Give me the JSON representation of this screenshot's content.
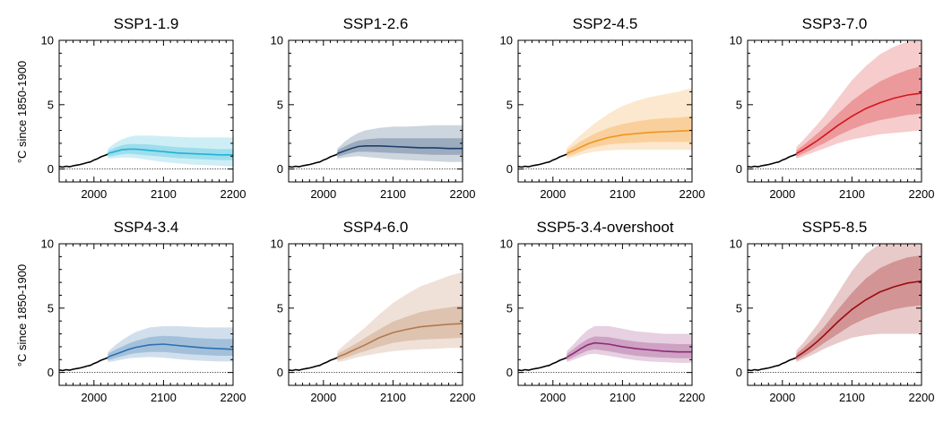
{
  "figure": {
    "ylabel": "°C since 1850-1900"
  },
  "chart_data": [
    {
      "type": "area",
      "title": "SSP1-1.9",
      "color": "#1fb3d5",
      "xlim": [
        1950,
        2200
      ],
      "ylim": [
        -1,
        10
      ],
      "xticks": [
        2000,
        2100,
        2200
      ],
      "yticks": [
        0,
        5,
        10
      ],
      "series": [
        {
          "x": [
            2020,
            2030,
            2040,
            2050,
            2060,
            2080,
            2100,
            2120,
            2140,
            2160,
            2180,
            2200
          ],
          "median": [
            1.2,
            1.35,
            1.5,
            1.55,
            1.55,
            1.45,
            1.35,
            1.25,
            1.2,
            1.15,
            1.1,
            1.1
          ],
          "p17": [
            0.95,
            1.05,
            1.15,
            1.2,
            1.15,
            1.05,
            0.95,
            0.85,
            0.8,
            0.75,
            0.7,
            0.7
          ],
          "p83": [
            1.4,
            1.65,
            1.85,
            1.95,
            1.95,
            1.9,
            1.8,
            1.7,
            1.65,
            1.6,
            1.55,
            1.55
          ],
          "p5": [
            0.8,
            0.85,
            0.9,
            0.9,
            0.85,
            0.7,
            0.55,
            0.45,
            0.35,
            0.3,
            0.25,
            0.2
          ],
          "p95": [
            1.6,
            2.0,
            2.3,
            2.5,
            2.6,
            2.6,
            2.55,
            2.5,
            2.45,
            2.45,
            2.45,
            2.45
          ]
        }
      ]
    },
    {
      "type": "area",
      "title": "SSP1-2.6",
      "color": "#1b3f6b",
      "xlim": [
        1950,
        2200
      ],
      "ylim": [
        -1,
        10
      ],
      "xticks": [
        2000,
        2100,
        2200
      ],
      "yticks": [
        0,
        5,
        10
      ],
      "series": [
        {
          "x": [
            2020,
            2030,
            2040,
            2050,
            2060,
            2080,
            2100,
            2120,
            2140,
            2160,
            2180,
            2200
          ],
          "median": [
            1.2,
            1.4,
            1.6,
            1.75,
            1.8,
            1.8,
            1.75,
            1.7,
            1.65,
            1.65,
            1.6,
            1.6
          ],
          "p17": [
            0.95,
            1.1,
            1.25,
            1.35,
            1.35,
            1.3,
            1.25,
            1.2,
            1.15,
            1.1,
            1.1,
            1.1
          ],
          "p83": [
            1.45,
            1.75,
            2.0,
            2.2,
            2.3,
            2.4,
            2.4,
            2.4,
            2.4,
            2.4,
            2.4,
            2.4
          ],
          "p5": [
            0.8,
            0.9,
            0.95,
            1.0,
            0.95,
            0.85,
            0.75,
            0.7,
            0.65,
            0.6,
            0.55,
            0.55
          ],
          "p95": [
            1.6,
            2.1,
            2.5,
            2.8,
            3.0,
            3.2,
            3.3,
            3.3,
            3.35,
            3.4,
            3.4,
            3.4
          ]
        }
      ]
    },
    {
      "type": "area",
      "title": "SSP2-4.5",
      "color": "#f0941e",
      "xlim": [
        1950,
        2200
      ],
      "ylim": [
        -1,
        10
      ],
      "xticks": [
        2000,
        2100,
        2200
      ],
      "yticks": [
        0,
        5,
        10
      ],
      "series": [
        {
          "x": [
            2020,
            2030,
            2040,
            2050,
            2060,
            2080,
            2100,
            2120,
            2140,
            2160,
            2180,
            2200
          ],
          "median": [
            1.2,
            1.45,
            1.7,
            1.95,
            2.15,
            2.45,
            2.65,
            2.75,
            2.85,
            2.9,
            2.95,
            3.0
          ],
          "p17": [
            0.95,
            1.15,
            1.35,
            1.55,
            1.7,
            1.9,
            2.0,
            2.05,
            2.1,
            2.1,
            2.1,
            2.1
          ],
          "p83": [
            1.45,
            1.8,
            2.15,
            2.45,
            2.75,
            3.2,
            3.5,
            3.7,
            3.85,
            3.95,
            4.0,
            4.1
          ],
          "p5": [
            0.8,
            0.95,
            1.1,
            1.25,
            1.35,
            1.45,
            1.5,
            1.5,
            1.5,
            1.5,
            1.5,
            1.5
          ],
          "p95": [
            1.65,
            2.15,
            2.65,
            3.1,
            3.55,
            4.3,
            4.9,
            5.3,
            5.6,
            5.8,
            6.0,
            6.3
          ]
        }
      ]
    },
    {
      "type": "area",
      "title": "SSP3-7.0",
      "color": "#d4161b",
      "xlim": [
        1950,
        2200
      ],
      "ylim": [
        -1,
        10
      ],
      "xticks": [
        2000,
        2100,
        2200
      ],
      "yticks": [
        0,
        5,
        10
      ],
      "series": [
        {
          "x": [
            2020,
            2030,
            2040,
            2050,
            2060,
            2080,
            2100,
            2120,
            2140,
            2160,
            2180,
            2200
          ],
          "median": [
            1.2,
            1.5,
            1.85,
            2.2,
            2.6,
            3.4,
            4.1,
            4.7,
            5.15,
            5.5,
            5.75,
            5.9
          ],
          "p17": [
            0.95,
            1.2,
            1.45,
            1.75,
            2.0,
            2.6,
            3.1,
            3.5,
            3.8,
            4.0,
            4.2,
            4.3
          ],
          "p83": [
            1.45,
            1.85,
            2.3,
            2.75,
            3.25,
            4.3,
            5.3,
            6.1,
            6.8,
            7.3,
            7.7,
            8.0
          ],
          "p5": [
            0.8,
            1.0,
            1.2,
            1.4,
            1.6,
            2.0,
            2.3,
            2.5,
            2.7,
            2.8,
            2.9,
            3.0
          ],
          "p95": [
            1.7,
            2.25,
            2.85,
            3.45,
            4.1,
            5.5,
            6.9,
            8.0,
            8.9,
            9.5,
            9.9,
            10.0
          ]
        }
      ]
    },
    {
      "type": "area",
      "title": "SSP4-3.4",
      "color": "#2c6fae",
      "xlim": [
        1950,
        2200
      ],
      "ylim": [
        -1,
        10
      ],
      "xticks": [
        2000,
        2100,
        2200
      ],
      "yticks": [
        0,
        5,
        10
      ],
      "series": [
        {
          "x": [
            2020,
            2030,
            2040,
            2050,
            2060,
            2080,
            2100,
            2120,
            2140,
            2160,
            2180,
            2200
          ],
          "median": [
            1.2,
            1.4,
            1.6,
            1.8,
            1.95,
            2.15,
            2.2,
            2.1,
            2.0,
            1.9,
            1.85,
            1.8
          ],
          "p17": [
            0.95,
            1.1,
            1.25,
            1.4,
            1.5,
            1.6,
            1.6,
            1.5,
            1.4,
            1.35,
            1.3,
            1.3
          ],
          "p83": [
            1.45,
            1.75,
            2.0,
            2.25,
            2.45,
            2.75,
            2.85,
            2.8,
            2.7,
            2.65,
            2.6,
            2.6
          ],
          "p5": [
            0.8,
            0.9,
            1.0,
            1.1,
            1.15,
            1.2,
            1.15,
            1.05,
            0.95,
            0.9,
            0.85,
            0.85
          ],
          "p95": [
            1.6,
            2.1,
            2.5,
            2.85,
            3.15,
            3.5,
            3.6,
            3.6,
            3.55,
            3.5,
            3.5,
            3.5
          ]
        }
      ]
    },
    {
      "type": "area",
      "title": "SSP4-6.0",
      "color": "#b5784d",
      "xlim": [
        1950,
        2200
      ],
      "ylim": [
        -1,
        10
      ],
      "xticks": [
        2000,
        2100,
        2200
      ],
      "yticks": [
        0,
        5,
        10
      ],
      "series": [
        {
          "x": [
            2020,
            2030,
            2040,
            2050,
            2060,
            2080,
            2100,
            2120,
            2140,
            2160,
            2180,
            2200
          ],
          "median": [
            1.2,
            1.4,
            1.65,
            1.9,
            2.15,
            2.7,
            3.1,
            3.35,
            3.55,
            3.65,
            3.75,
            3.8
          ],
          "p17": [
            0.95,
            1.1,
            1.3,
            1.5,
            1.65,
            2.0,
            2.3,
            2.45,
            2.55,
            2.6,
            2.65,
            2.7
          ],
          "p83": [
            1.45,
            1.75,
            2.05,
            2.35,
            2.7,
            3.35,
            3.95,
            4.35,
            4.7,
            4.9,
            5.05,
            5.2
          ],
          "p5": [
            0.8,
            0.9,
            1.05,
            1.2,
            1.3,
            1.5,
            1.65,
            1.75,
            1.8,
            1.85,
            1.9,
            1.9
          ],
          "p95": [
            1.65,
            2.15,
            2.6,
            3.05,
            3.5,
            4.5,
            5.4,
            6.1,
            6.7,
            7.1,
            7.5,
            7.8
          ]
        }
      ]
    },
    {
      "type": "area",
      "title": "SSP5-3.4-overshoot",
      "color": "#8e2a78",
      "xlim": [
        1950,
        2200
      ],
      "ylim": [
        -1,
        10
      ],
      "xticks": [
        2000,
        2100,
        2200
      ],
      "yticks": [
        0,
        5,
        10
      ],
      "series": [
        {
          "x": [
            2020,
            2030,
            2040,
            2050,
            2060,
            2080,
            2100,
            2120,
            2140,
            2160,
            2180,
            2200
          ],
          "median": [
            1.2,
            1.5,
            1.85,
            2.15,
            2.3,
            2.2,
            2.0,
            1.85,
            1.75,
            1.65,
            1.6,
            1.6
          ],
          "p17": [
            0.95,
            1.2,
            1.45,
            1.7,
            1.8,
            1.65,
            1.45,
            1.3,
            1.2,
            1.15,
            1.1,
            1.1
          ],
          "p83": [
            1.45,
            1.85,
            2.25,
            2.6,
            2.8,
            2.75,
            2.55,
            2.4,
            2.3,
            2.25,
            2.2,
            2.2
          ],
          "p5": [
            0.8,
            1.0,
            1.2,
            1.4,
            1.45,
            1.3,
            1.1,
            0.95,
            0.85,
            0.8,
            0.75,
            0.75
          ],
          "p95": [
            1.65,
            2.2,
            2.8,
            3.3,
            3.6,
            3.6,
            3.4,
            3.2,
            3.1,
            3.0,
            3.0,
            3.0
          ]
        }
      ]
    },
    {
      "type": "area",
      "title": "SSP5-8.5",
      "color": "#9a0c0d",
      "xlim": [
        1950,
        2200
      ],
      "ylim": [
        -1,
        10
      ],
      "xticks": [
        2000,
        2100,
        2200
      ],
      "yticks": [
        0,
        5,
        10
      ],
      "series": [
        {
          "x": [
            2020,
            2030,
            2040,
            2050,
            2060,
            2080,
            2100,
            2120,
            2140,
            2160,
            2180,
            2200
          ],
          "median": [
            1.2,
            1.55,
            1.95,
            2.4,
            2.9,
            3.95,
            4.9,
            5.65,
            6.25,
            6.65,
            6.95,
            7.1
          ],
          "p17": [
            0.95,
            1.25,
            1.55,
            1.9,
            2.3,
            3.0,
            3.7,
            4.2,
            4.6,
            4.9,
            5.1,
            5.2
          ],
          "p83": [
            1.45,
            1.9,
            2.4,
            2.95,
            3.55,
            4.9,
            6.2,
            7.3,
            8.1,
            8.6,
            8.95,
            9.1
          ],
          "p5": [
            0.8,
            1.05,
            1.3,
            1.55,
            1.85,
            2.3,
            2.7,
            2.9,
            3.0,
            3.0,
            3.0,
            3.0
          ],
          "p95": [
            1.7,
            2.3,
            3.0,
            3.7,
            4.5,
            6.2,
            7.9,
            9.2,
            10.0,
            10.0,
            10.0,
            10.0
          ]
        }
      ]
    }
  ],
  "historical": {
    "color": "#000000",
    "x": [
      1950,
      1955,
      1960,
      1965,
      1970,
      1975,
      1980,
      1985,
      1990,
      1995,
      2000,
      2005,
      2010,
      2015,
      2020
    ],
    "y": [
      0.2,
      0.15,
      0.22,
      0.18,
      0.25,
      0.3,
      0.35,
      0.42,
      0.5,
      0.55,
      0.7,
      0.8,
      0.95,
      1.05,
      1.15
    ]
  }
}
